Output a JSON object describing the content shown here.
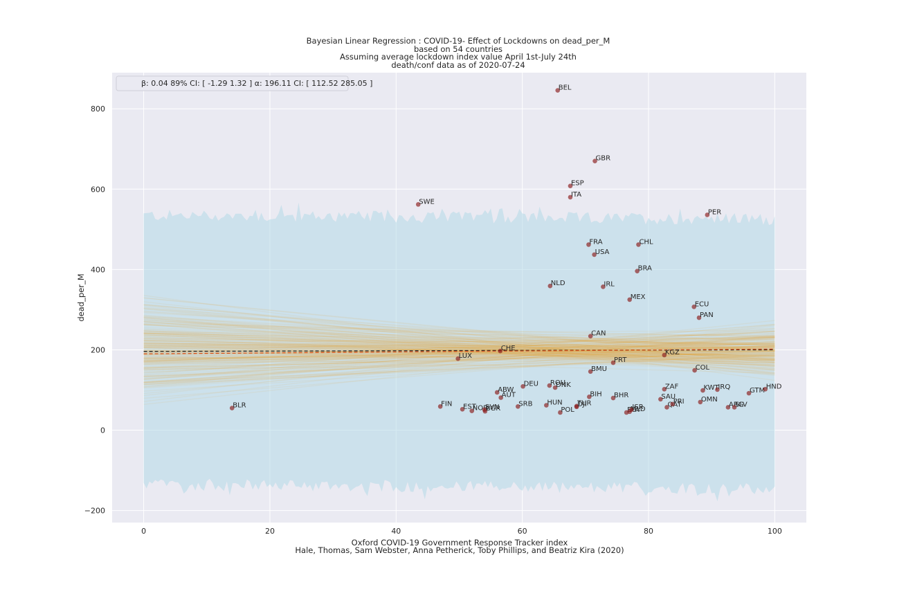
{
  "chart_data": {
    "type": "scatter",
    "title": "Bayesian Linear Regression : COVID-19- Effect of Lockdowns on dead_per_M",
    "subtitle_lines": [
      "based on 54 countries",
      "Assuming average lockdown index value April 1st-July 24th",
      "death/conf data as of 2020-07-24"
    ],
    "xlabel": "Oxford COVID-19 Government Response Tracker index",
    "xlabel2": "Hale, Thomas, Sam Webster, Anna Petherick, Toby Phillips, and Beatriz Kira (2020)",
    "ylabel": "dead_per_M",
    "xlim": [
      -5,
      105
    ],
    "ylim": [
      -230,
      890
    ],
    "xticks": [
      0,
      20,
      40,
      60,
      80,
      100
    ],
    "yticks": [
      -200,
      0,
      200,
      400,
      600,
      800
    ],
    "xtick_labels": [
      "0",
      "20",
      "40",
      "60",
      "80",
      "100"
    ],
    "ytick_labels": [
      "−200",
      "0",
      "200",
      "400",
      "600",
      "800"
    ],
    "grid": true,
    "legend_text": "β: 0.04 89% CI: [ -1.29 1.32 ] α: 196.11 CI: [ 112.52 285.05 ]",
    "legend_position": "top-left",
    "regression": {
      "beta": 0.04,
      "alpha": 196.11,
      "beta_ci": [
        -1.29,
        1.32
      ],
      "alpha_ci": [
        112.52,
        285.05
      ],
      "x_range": [
        0,
        100
      ],
      "mean_line": [
        [
          0,
          196.11
        ],
        [
          100,
          200.11
        ]
      ],
      "ols_line": [
        [
          0,
          190
        ],
        [
          100,
          202
        ]
      ],
      "pred_band_center": [
        200,
        190
      ],
      "pred_band_halfwidth": 335
    },
    "points": [
      {
        "c": "BLR",
        "x": 14.0,
        "y": 55
      },
      {
        "c": "SWE",
        "x": 43.5,
        "y": 562
      },
      {
        "c": "FIN",
        "x": 47.0,
        "y": 59
      },
      {
        "c": "LUX",
        "x": 49.8,
        "y": 178
      },
      {
        "c": "EST",
        "x": 50.5,
        "y": 52
      },
      {
        "c": "NOR",
        "x": 52.0,
        "y": 48
      },
      {
        "c": "SVN",
        "x": 54.0,
        "y": 51
      },
      {
        "c": "BGR",
        "x": 54.1,
        "y": 47
      },
      {
        "c": "ABW",
        "x": 56.0,
        "y": 94
      },
      {
        "c": "CHE",
        "x": 56.5,
        "y": 197
      },
      {
        "c": "AUT",
        "x": 56.6,
        "y": 81
      },
      {
        "c": "SRB",
        "x": 59.3,
        "y": 59
      },
      {
        "c": "DEU",
        "x": 60.1,
        "y": 109
      },
      {
        "c": "HUN",
        "x": 63.8,
        "y": 62
      },
      {
        "c": "ROU",
        "x": 64.3,
        "y": 111
      },
      {
        "c": "NLD",
        "x": 64.4,
        "y": 359
      },
      {
        "c": "DNK",
        "x": 65.2,
        "y": 106
      },
      {
        "c": "BEL",
        "x": 65.6,
        "y": 846
      },
      {
        "c": "POL",
        "x": 66.0,
        "y": 44
      },
      {
        "c": "ESP",
        "x": 67.6,
        "y": 608
      },
      {
        "c": "ITA",
        "x": 67.6,
        "y": 580
      },
      {
        "c": "TUR",
        "x": 68.6,
        "y": 60
      },
      {
        "c": "DJI",
        "x": 68.6,
        "y": 58
      },
      {
        "c": "FRA",
        "x": 70.5,
        "y": 462
      },
      {
        "c": "BIH",
        "x": 70.6,
        "y": 83
      },
      {
        "c": "CAN",
        "x": 70.8,
        "y": 234
      },
      {
        "c": "BMU",
        "x": 70.8,
        "y": 146
      },
      {
        "c": "USA",
        "x": 71.4,
        "y": 437
      },
      {
        "c": "GBR",
        "x": 71.5,
        "y": 670
      },
      {
        "c": "IRL",
        "x": 72.8,
        "y": 357
      },
      {
        "c": "BHR",
        "x": 74.4,
        "y": 80
      },
      {
        "c": "PRT",
        "x": 74.4,
        "y": 168
      },
      {
        "c": "EGY",
        "x": 76.5,
        "y": 44
      },
      {
        "c": "MLD",
        "x": 77.0,
        "y": 46
      },
      {
        "c": "MEX",
        "x": 77.0,
        "y": 325
      },
      {
        "c": "ISR",
        "x": 77.3,
        "y": 51
      },
      {
        "c": "BRA",
        "x": 78.2,
        "y": 396
      },
      {
        "c": "CHL",
        "x": 78.4,
        "y": 462
      },
      {
        "c": "SAU",
        "x": 81.9,
        "y": 77
      },
      {
        "c": "KGZ",
        "x": 82.5,
        "y": 187
      },
      {
        "c": "ZAF",
        "x": 82.5,
        "y": 102
      },
      {
        "c": "QAT",
        "x": 82.9,
        "y": 57
      },
      {
        "c": "PRI",
        "x": 83.8,
        "y": 65
      },
      {
        "c": "ECU",
        "x": 87.2,
        "y": 307
      },
      {
        "c": "COL",
        "x": 87.3,
        "y": 149
      },
      {
        "c": "PAN",
        "x": 88.0,
        "y": 280
      },
      {
        "c": "OMN",
        "x": 88.2,
        "y": 70
      },
      {
        "c": "KWT",
        "x": 88.6,
        "y": 99
      },
      {
        "c": "PER",
        "x": 89.3,
        "y": 536
      },
      {
        "c": "IRQ",
        "x": 90.9,
        "y": 101
      },
      {
        "c": "ARG",
        "x": 92.6,
        "y": 57
      },
      {
        "c": "SLV",
        "x": 93.6,
        "y": 57
      },
      {
        "c": "GTM",
        "x": 95.9,
        "y": 92
      },
      {
        "c": "HND",
        "x": 98.5,
        "y": 102
      }
    ]
  },
  "colors": {
    "plot_bg": "#eaeaf2",
    "grid": "#ffffff",
    "band": "#add8e6",
    "lines": "#e9a73a",
    "points": "#8b1a1a",
    "mean_line": "#262626",
    "ols_line": "#d9541a"
  }
}
